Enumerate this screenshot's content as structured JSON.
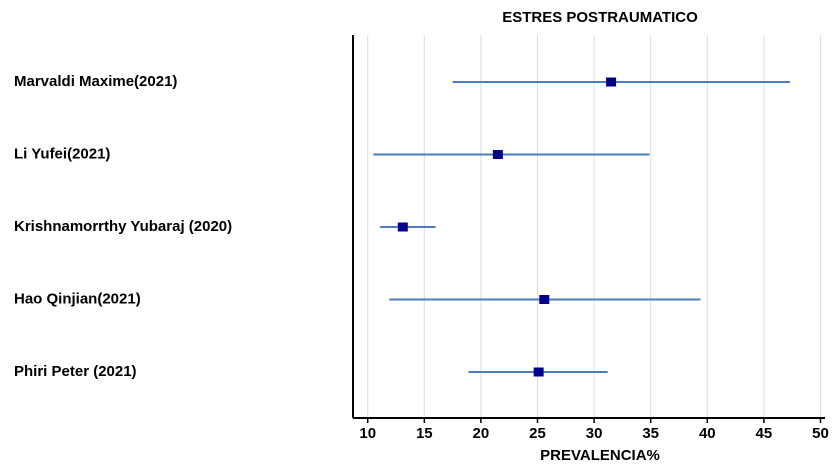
{
  "chart_data": {
    "type": "forest",
    "title": "ESTRES POSTRAUMATICO",
    "x_label": "PREVALENCIA%",
    "categories": [
      "Marvaldi Maxime(2021)",
      "Li Yufei(2021)",
      "Krishnamorrthy Yubaraj (2020)",
      "Hao Qinjian(2021)",
      "Phiri Peter (2021)"
    ],
    "values": [
      31.5,
      21.5,
      13.1,
      25.6,
      25.1
    ],
    "lower": [
      17.5,
      10.5,
      11.1,
      11.9,
      18.9
    ],
    "upper": [
      47.3,
      34.9,
      16.0,
      39.4,
      31.2
    ],
    "color": "#00008b",
    "ci_color": "#4a7ebf",
    "xlim": [
      8.7,
      50.4
    ],
    "xticks": [
      10,
      15,
      20,
      25,
      30,
      35,
      40,
      45,
      50
    ],
    "grid": true
  }
}
